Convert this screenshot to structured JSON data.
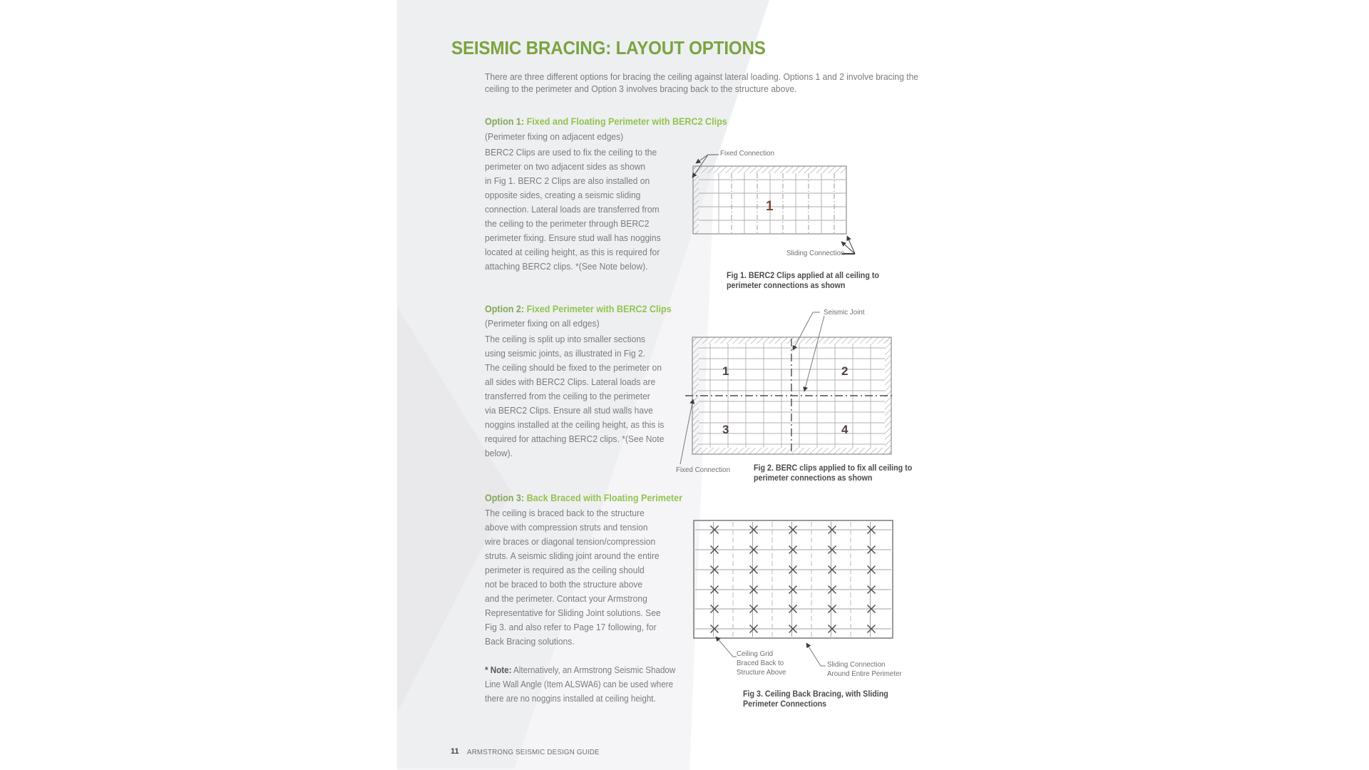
{
  "page": {
    "title": "SEISMIC BRACING: LAYOUT OPTIONS",
    "intro_lines": [
      "There are three different options for bracing the ceiling against lateral loading. Options 1 and 2 involve bracing the",
      "ceiling to the perimeter and Option 3 involves bracing back to the structure above."
    ],
    "footer": {
      "page_number": "11",
      "text": "ARMSTRONG SEISMIC DESIGN GUIDE"
    }
  },
  "options": [
    {
      "label": "Option 1:",
      "heading": " Fixed and Floating Perimeter with BERC2 Clips",
      "subheading": "(Perimeter fixing on adjacent edges)",
      "body_lines": [
        "BERC2 Clips are used to fix the ceiling to the",
        "perimeter on two adjacent sides as shown",
        "in Fig 1. BERC 2 Clips are also installed on",
        "opposite sides, creating a seismic sliding",
        "connection. Lateral loads are transferred from",
        "the ceiling to the perimeter through BERC2",
        "perimeter fixing. Ensure stud wall has noggins",
        "located at ceiling height, as this is required for",
        "attaching BERC2 clips. *(See Note below)."
      ]
    },
    {
      "label": "Option 2:",
      "heading": " Fixed Perimeter with BERC2 Clips",
      "subheading": "(Perimeter fixing on all edges)",
      "body_lines": [
        "The ceiling is split up into smaller sections",
        "using seismic joints, as illustrated in Fig 2.",
        "The ceiling should be fixed to the perimeter on",
        "all sides with BERC2 Clips. Lateral loads are",
        "transferred from the ceiling to the perimeter",
        "via BERC2 Clips. Ensure all stud walls have",
        "noggins installed at the ceiling height, as this is",
        "required for attaching BERC2 clips. *(See Note",
        "below)."
      ]
    },
    {
      "label": "Option 3:",
      "heading": " Back Braced with Floating Perimeter",
      "subheading": "",
      "body_lines": [
        "The ceiling is braced back to the structure",
        "above with compression struts and tension",
        "wire braces or diagonal tension/compression",
        "struts. A seismic sliding joint around the entire",
        "perimeter is required as the ceiling should",
        "not be braced to both the structure above",
        "and the perimeter. Contact your Armstrong",
        "Representative for Sliding Joint solutions. See",
        "Fig 3. and also refer to Page 17 following, for",
        "Back Bracing solutions."
      ]
    }
  ],
  "note": {
    "label": "* Note:",
    "first_line_rest": " Alternatively, an Armstrong Seismic Shadow",
    "lines": [
      "Line Wall Angle (Item ALSWA6) can be used where",
      "there are no noggins installed at ceiling height."
    ]
  },
  "figures": [
    {
      "zone": "1",
      "labels": {
        "fixed": "Fixed Connection",
        "sliding": "Sliding Connection"
      },
      "caption_lines": [
        "Fig 1. BERC2 Clips applied at all ceiling to",
        "perimeter connections as shown"
      ]
    },
    {
      "zones": [
        "1",
        "2",
        "3",
        "4"
      ],
      "labels": {
        "seismic": "Seismic Joint",
        "fixed": "Fixed Connection"
      },
      "caption_lines": [
        "Fig 2. BERC clips applied to fix all ceiling to",
        "perimeter connections as shown"
      ]
    },
    {
      "labels": {
        "grid_lines": [
          "Ceiling Grid",
          "Braced Back to",
          "Structure Above"
        ],
        "sliding_lines": [
          "Sliding Connection",
          "Around Entire Perimeter"
        ]
      },
      "caption_lines": [
        "Fig 3. Ceiling Back Bracing, with Sliding",
        "Perimeter Connections"
      ]
    }
  ],
  "colors": {
    "title_green": "#7aa440",
    "option_label_green": "#85a757",
    "option_heading_green": "#92c44f",
    "body_gray": "#7b7c7f",
    "caption_dark": "#4b4b4d",
    "diagram_line_gray": "#a3a3a3",
    "diagram_dark": "#4c4c4c",
    "zone_number_brown": "#7d4636",
    "background_gray": "#eeeff1"
  }
}
